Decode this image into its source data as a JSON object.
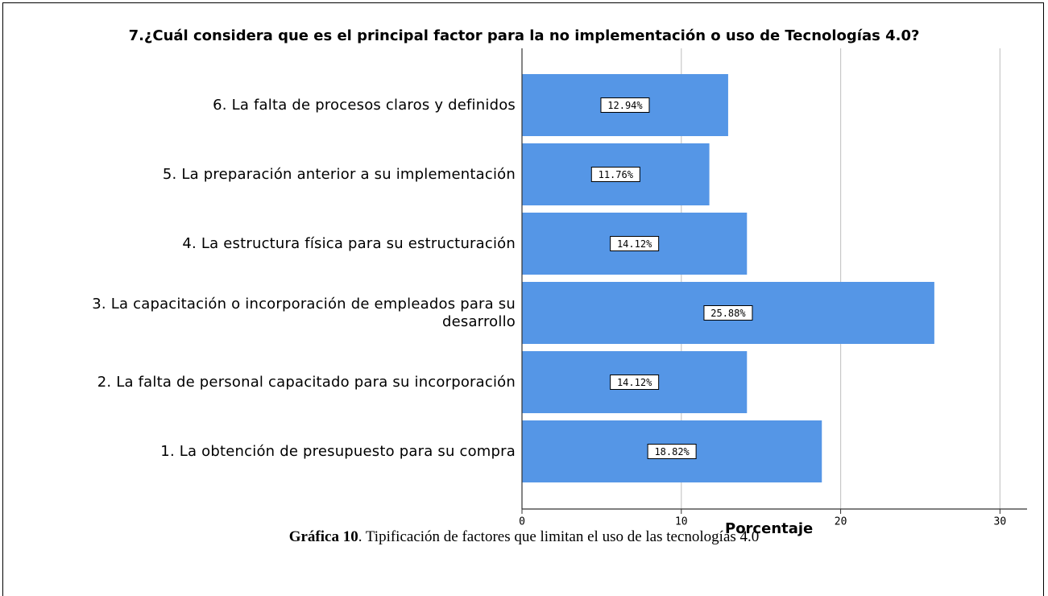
{
  "chart_data": {
    "type": "bar",
    "orientation": "horizontal",
    "title": "7.¿Cuál considera que es el principal factor para la no implementación o uso de Tecnologías 4.0?",
    "categories": [
      "6. La falta de procesos claros y definidos",
      "5. La preparación anterior a su implementación",
      "4. La estructura física para su estructuración",
      "3. La capacitación o incorporación de empleados para su desarrollo",
      "2. La falta de personal capacitado para su incorporación",
      "1. La obtención de presupuesto para su compra"
    ],
    "values": [
      12.94,
      11.76,
      14.12,
      25.88,
      14.12,
      18.82
    ],
    "value_labels": [
      "12.94%",
      "11.76%",
      "14.12%",
      "25.88%",
      "14.12%",
      "18.82%"
    ],
    "color": "#5596e6",
    "xlabel": "Porcentaje",
    "xlim": [
      0,
      31.7
    ],
    "xticks": [
      0,
      10,
      20,
      30
    ],
    "grid": true
  },
  "caption": {
    "label": "Gráfica 10",
    "text": ". Tipificación de factores que limitan el uso de las tecnologías 4.0"
  }
}
